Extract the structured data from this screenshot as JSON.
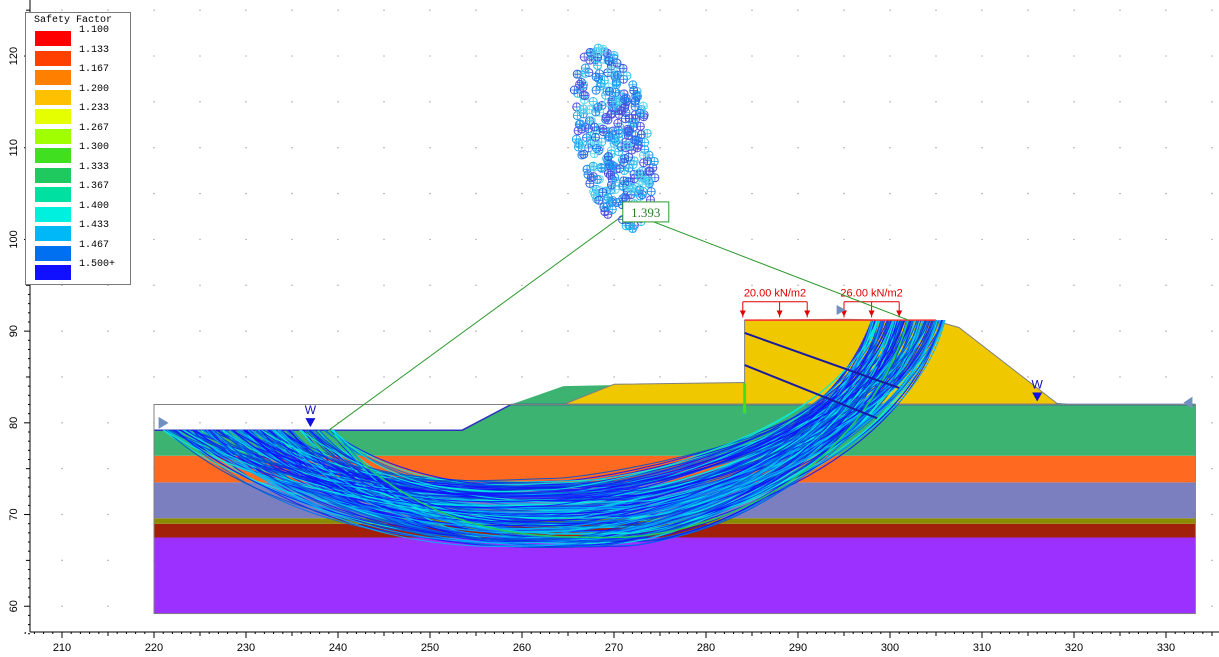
{
  "legend": {
    "title": "Safety Factor",
    "entries": [
      {
        "label": "1.100",
        "color": "#ff0000"
      },
      {
        "label": "1.133",
        "color": "#ff4000"
      },
      {
        "label": "1.167",
        "color": "#ff8000"
      },
      {
        "label": "1.200",
        "color": "#ffc000"
      },
      {
        "label": "1.233",
        "color": "#e6ff00"
      },
      {
        "label": "1.267",
        "color": "#a0ff00"
      },
      {
        "label": "1.300",
        "color": "#40e020"
      },
      {
        "label": "1.333",
        "color": "#20c860"
      },
      {
        "label": "1.367",
        "color": "#00e0a0"
      },
      {
        "label": "1.400",
        "color": "#00f0e0"
      },
      {
        "label": "1.433",
        "color": "#00b8f8"
      },
      {
        "label": "1.467",
        "color": "#0070f0"
      },
      {
        "label": "1.500+",
        "color": "#1010ff"
      }
    ]
  },
  "axes": {
    "x_ticks": [
      210,
      220,
      230,
      240,
      250,
      260,
      270,
      280,
      290,
      300,
      310,
      320,
      330
    ],
    "y_ticks": [
      60,
      70,
      80,
      90,
      100,
      110,
      120
    ]
  },
  "min_fs_label": "1.393",
  "loads": [
    {
      "label": "20.00 kN/m2",
      "x_start": 284,
      "x_end": 291,
      "arrows": [
        284,
        288,
        291
      ]
    },
    {
      "label": "26.00 kN/m2",
      "x_start": 295,
      "x_end": 301,
      "arrows": [
        295,
        298,
        301
      ]
    }
  ],
  "water_markers": [
    {
      "label": "W",
      "x": 237,
      "y": 79.2
    },
    {
      "label": "W",
      "x": 316,
      "y": 82.0
    }
  ],
  "layers": [
    {
      "name": "green-layer",
      "color": "#3cb371"
    },
    {
      "name": "orange-layer",
      "color": "#ff6a20"
    },
    {
      "name": "slate-layer",
      "color": "#7b7fbf"
    },
    {
      "name": "olive-layer",
      "color": "#8b8b00"
    },
    {
      "name": "brown-layer",
      "color": "#a0200a"
    },
    {
      "name": "purple-layer",
      "color": "#9b30ff"
    },
    {
      "name": "embankment-fill",
      "color": "#f0c800"
    }
  ],
  "chart_data": {
    "type": "diagram",
    "x_range": [
      205,
      335
    ],
    "y_range": [
      57,
      125
    ],
    "min_safety_factor": 1.393,
    "center_grid_center": [
      271,
      103
    ],
    "slip_surface_extent": {
      "x_left": 239,
      "x_right": 302,
      "y_bottom": 67.5
    }
  }
}
